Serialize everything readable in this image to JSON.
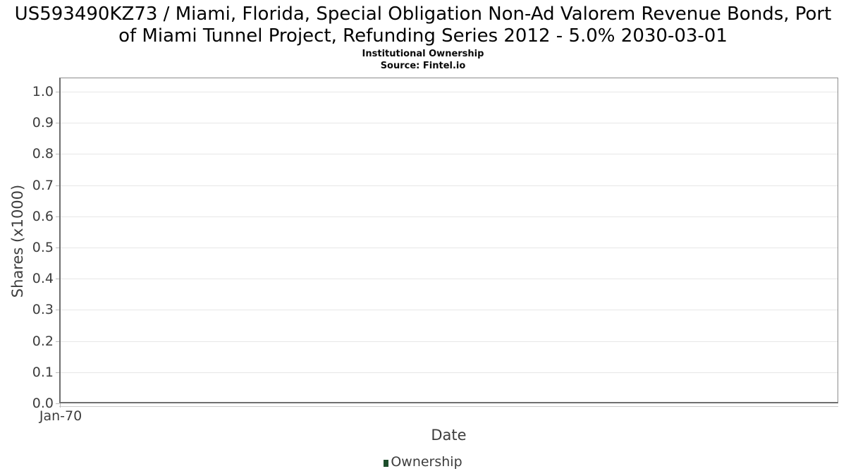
{
  "chart_data": {
    "type": "line",
    "title": "US593490KZ73 / Miami, Florida, Special Obligation Non-Ad Valorem Revenue Bonds, Port of Miami Tunnel Project, Refunding Series 2012 - 5.0% 2030-03-01",
    "subtitle": "Institutional Ownership",
    "source": "Source: Fintel.io",
    "xlabel": "Date",
    "ylabel": "Shares (x1000)",
    "x": [],
    "series": [
      {
        "name": "Ownership",
        "color": "#1d4d2b",
        "values": []
      }
    ],
    "yticks": [
      0.0,
      0.1,
      0.2,
      0.3,
      0.4,
      0.5,
      0.6,
      0.7,
      0.8,
      0.9,
      1.0
    ],
    "ytick_labels": [
      "0.0",
      "0.1",
      "0.2",
      "0.3",
      "0.4",
      "0.5",
      "0.6",
      "0.7",
      "0.8",
      "0.9",
      "1.0"
    ],
    "xtick_labels": [
      "Jan-70"
    ],
    "ylim": [
      0.0,
      1.045
    ],
    "grid": true,
    "legend_position": "bottom"
  }
}
